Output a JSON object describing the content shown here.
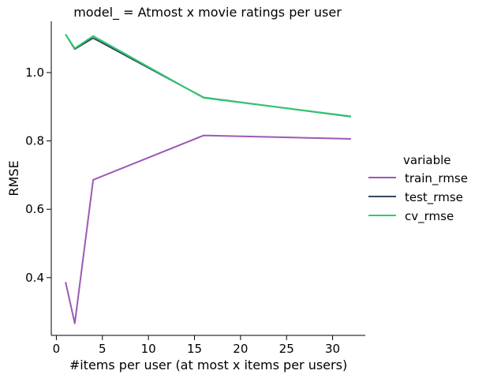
{
  "chart_data": {
    "type": "line",
    "title": "model_ = Atmost x movie ratings per user",
    "xlabel": "#items per user (at most x items per users)",
    "ylabel": "RMSE",
    "xlim": [
      -0.55,
      33.55
    ],
    "ylim": [
      0.231,
      1.15
    ],
    "xticks": [
      0,
      5,
      10,
      15,
      20,
      25,
      30
    ],
    "xtick_labels": [
      "0",
      "5",
      "10",
      "15",
      "20",
      "25",
      "30"
    ],
    "yticks": [
      0.4,
      0.6,
      0.8,
      1.0
    ],
    "ytick_labels": [
      "0.4",
      "0.6",
      "0.8",
      "1.0"
    ],
    "grid": false,
    "legend_title": "variable",
    "legend_position": "right",
    "series": [
      {
        "name": "train_rmse",
        "color": "#9b59b6",
        "x": [
          1,
          2,
          4,
          16,
          32
        ],
        "y": [
          0.387,
          0.266,
          0.686,
          0.816,
          0.806
        ]
      },
      {
        "name": "test_rmse",
        "color": "#34495e",
        "x": [
          1,
          2,
          4,
          16,
          32
        ],
        "y": [
          1.112,
          1.069,
          1.101,
          0.927,
          0.871
        ]
      },
      {
        "name": "cv_rmse",
        "color": "#2ecc71",
        "x": [
          1,
          2,
          4,
          16,
          32
        ],
        "y": [
          1.112,
          1.071,
          1.107,
          0.926,
          0.872
        ]
      }
    ]
  }
}
